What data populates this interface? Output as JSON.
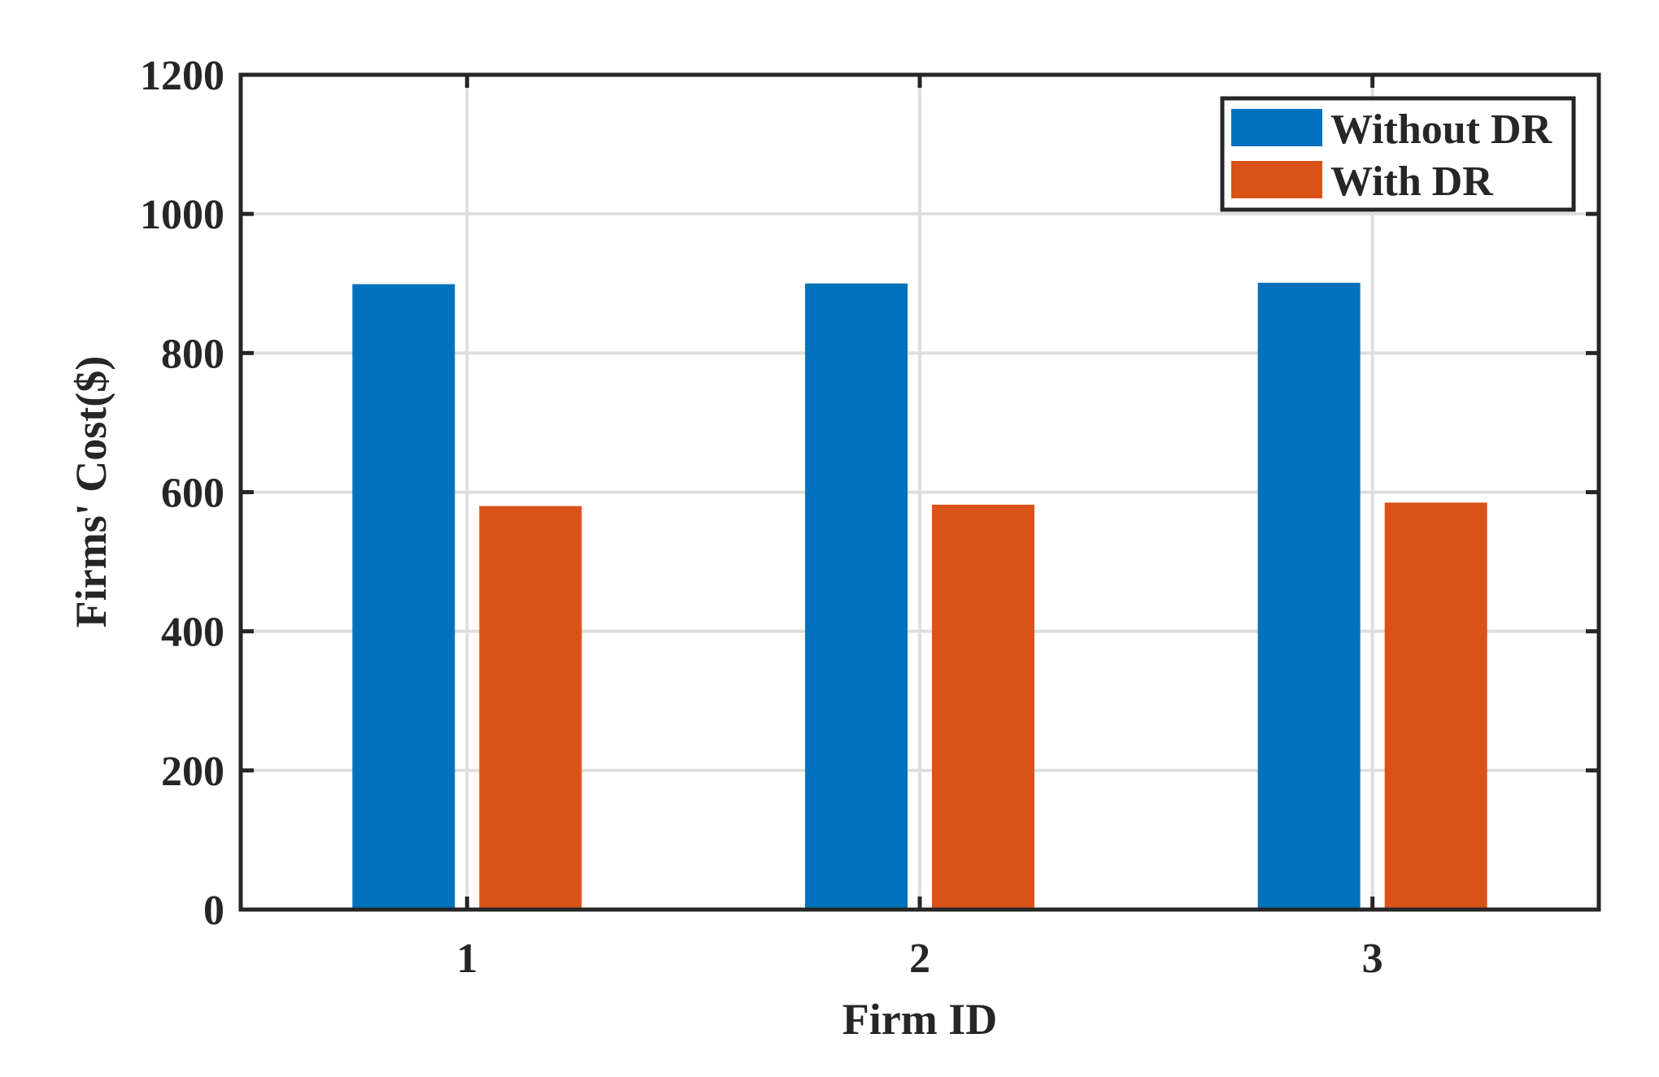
{
  "chart_data": {
    "type": "bar",
    "title": "",
    "xlabel": "Firm ID",
    "ylabel": "Firms' Cost($)",
    "categories": [
      "1",
      "2",
      "3"
    ],
    "series": [
      {
        "name": "Without DR",
        "color": "#0072BD",
        "values": [
          899,
          900,
          901
        ]
      },
      {
        "name": "With DR",
        "color": "#D95319",
        "values": [
          580,
          582,
          585
        ]
      }
    ],
    "ylim": [
      0,
      1200
    ],
    "yticks": [
      0,
      200,
      400,
      600,
      800,
      1000,
      1200
    ],
    "grid": true,
    "legend_position": "top-right"
  }
}
